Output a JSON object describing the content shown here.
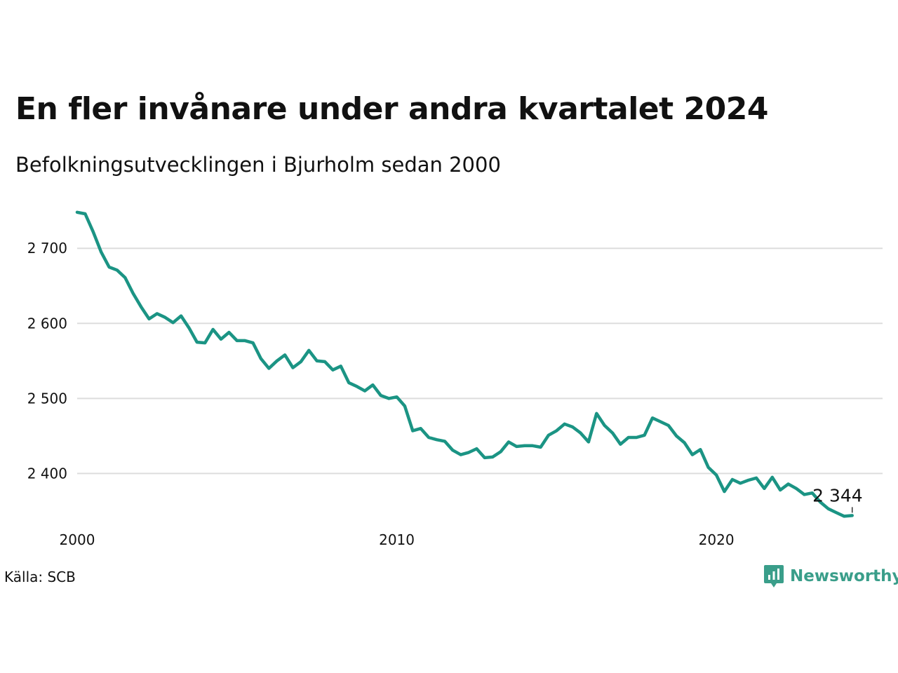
{
  "title": "En fler invånare under andra kvartalet 2024",
  "subtitle": "Befolkningsutvecklingen i Bjurholm sedan 2000",
  "source": "Källa: SCB",
  "brand": "Newsworthy",
  "colors": {
    "line": "#1b9484",
    "grid": "#dddddd",
    "brand": "#3a9e8a"
  },
  "chart_data": {
    "type": "line",
    "title": "En fler invånare under andra kvartalet 2024",
    "subtitle": "Befolkningsutvecklingen i Bjurholm sedan 2000",
    "xlabel": "",
    "ylabel": "",
    "grid": true,
    "xlim": [
      2000,
      2025.2
    ],
    "ylim": [
      2335,
      2760
    ],
    "x_ticks": [
      2000,
      2010,
      2020
    ],
    "x_tick_labels": [
      "2000",
      "2010",
      "2020"
    ],
    "y_ticks": [
      2400,
      2500,
      2600,
      2700
    ],
    "y_tick_labels": [
      "2 400",
      "2 500",
      "2 600",
      "2 700"
    ],
    "end_label": "2 344",
    "x": [
      2000.0,
      2000.25,
      2000.5,
      2000.75,
      2001.0,
      2001.25,
      2001.5,
      2001.75,
      2002.0,
      2002.25,
      2002.5,
      2002.75,
      2003.0,
      2003.25,
      2003.5,
      2003.75,
      2004.0,
      2004.25,
      2004.5,
      2004.75,
      2005.0,
      2005.25,
      2005.5,
      2005.75,
      2006.0,
      2006.25,
      2006.5,
      2006.75,
      2007.0,
      2007.25,
      2007.5,
      2007.75,
      2008.0,
      2008.25,
      2008.5,
      2008.75,
      2009.0,
      2009.25,
      2009.5,
      2009.75,
      2010.0,
      2010.25,
      2010.5,
      2010.75,
      2011.0,
      2011.25,
      2011.5,
      2011.75,
      2012.0,
      2012.25,
      2012.5,
      2012.75,
      2013.0,
      2013.25,
      2013.5,
      2013.75,
      2014.0,
      2014.25,
      2014.5,
      2014.75,
      2015.0,
      2015.25,
      2015.5,
      2015.75,
      2016.0,
      2016.25,
      2016.5,
      2016.75,
      2017.0,
      2017.25,
      2017.5,
      2017.75,
      2018.0,
      2018.25,
      2018.5,
      2018.75,
      2019.0,
      2019.25,
      2019.5,
      2019.75,
      2020.0,
      2020.25,
      2020.5,
      2020.75,
      2021.0,
      2021.25,
      2021.5,
      2021.75,
      2022.0,
      2022.25,
      2022.5,
      2022.75,
      2023.0,
      2023.25,
      2023.5,
      2023.75,
      2024.0,
      2024.25
    ],
    "series": [
      {
        "values": [
          2748,
          2746,
          2722,
          2695,
          2675,
          2671,
          2661,
          2640,
          2622,
          2606,
          2613,
          2608,
          2601,
          2610,
          2594,
          2575,
          2574,
          2592,
          2579,
          2588,
          2577,
          2577,
          2574,
          2553,
          2540,
          2550,
          2558,
          2541,
          2549,
          2564,
          2550,
          2549,
          2538,
          2543,
          2521,
          2516,
          2510,
          2518,
          2504,
          2500,
          2502,
          2490,
          2457,
          2460,
          2448,
          2445,
          2443,
          2431,
          2425,
          2428,
          2433,
          2421,
          2422,
          2429,
          2442,
          2436,
          2437,
          2437,
          2435,
          2451,
          2457,
          2466,
          2462,
          2454,
          2442,
          2480,
          2464,
          2454,
          2439,
          2448,
          2448,
          2451,
          2474,
          2469,
          2464,
          2450,
          2441,
          2425,
          2432,
          2408,
          2398,
          2376,
          2392,
          2387,
          2391,
          2394,
          2380,
          2395,
          2378,
          2386,
          2380,
          2372,
          2374,
          2362,
          2353,
          2348,
          2343,
          2344
        ]
      }
    ]
  }
}
